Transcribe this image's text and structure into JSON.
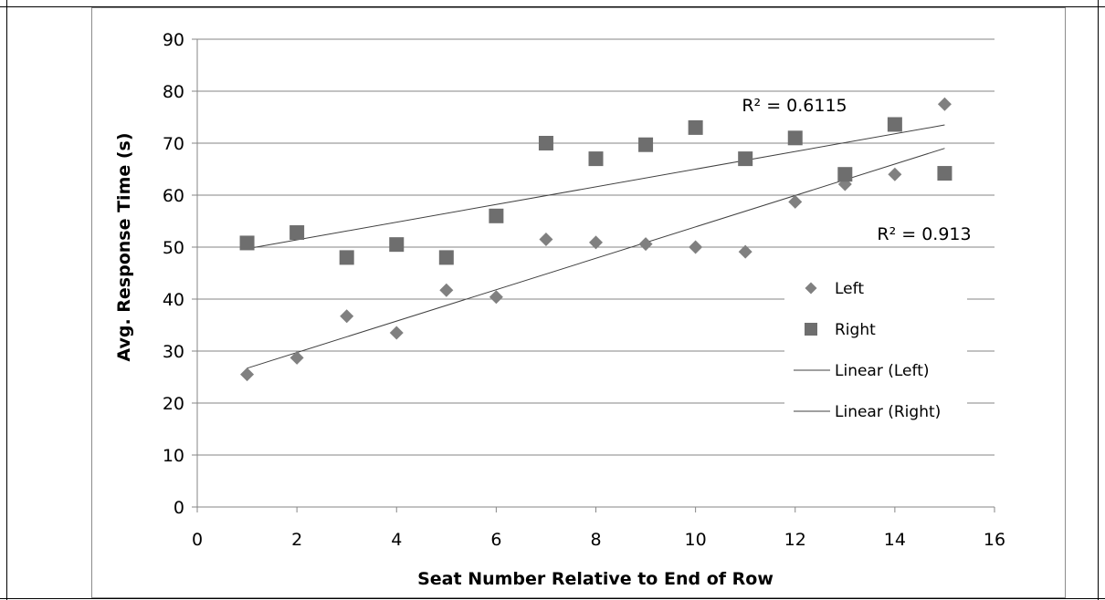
{
  "chart_data": {
    "type": "scatter",
    "xlabel": "Seat Number Relative to End of Row",
    "ylabel": "Avg. Response Time (s)",
    "xlim": [
      0,
      16
    ],
    "ylim": [
      0,
      90
    ],
    "xticks": [
      0,
      2,
      4,
      6,
      8,
      10,
      12,
      14,
      16
    ],
    "yticks": [
      0,
      10,
      20,
      30,
      40,
      50,
      60,
      70,
      80,
      90
    ],
    "grid": "horizontal",
    "legend_position": "right",
    "series": [
      {
        "name": "Left",
        "marker": "diamond",
        "color": "#808080",
        "x": [
          1,
          2,
          3,
          4,
          5,
          6,
          7,
          8,
          9,
          10,
          11,
          12,
          13,
          14,
          15
        ],
        "y": [
          25.5,
          28.7,
          36.7,
          33.5,
          41.7,
          40.4,
          51.5,
          50.9,
          50.6,
          50.0,
          49.1,
          58.7,
          62.1,
          64.0,
          77.5
        ]
      },
      {
        "name": "Right",
        "marker": "square",
        "color": "#6e6e6e",
        "x": [
          1,
          2,
          3,
          4,
          5,
          6,
          7,
          8,
          9,
          10,
          11,
          12,
          13,
          14,
          15
        ],
        "y": [
          50.8,
          52.8,
          48.0,
          50.5,
          48.0,
          56.0,
          70.0,
          67.0,
          69.7,
          73.0,
          67.0,
          71.0,
          64.0,
          73.6,
          64.2
        ]
      }
    ],
    "trendlines": [
      {
        "name": "Linear (Left)",
        "type": "linear",
        "x": [
          1,
          15
        ],
        "y": [
          26.7,
          69.0
        ],
        "r2_label": "R² = 0.913"
      },
      {
        "name": "Linear (Right)",
        "type": "linear",
        "x": [
          1,
          15
        ],
        "y": [
          49.7,
          73.5
        ],
        "r2_label": "R² = 0.6115"
      }
    ]
  },
  "colors": {
    "axis": "#868686",
    "gridline": "#868686",
    "trendline": "#404040",
    "text": "#000000"
  }
}
